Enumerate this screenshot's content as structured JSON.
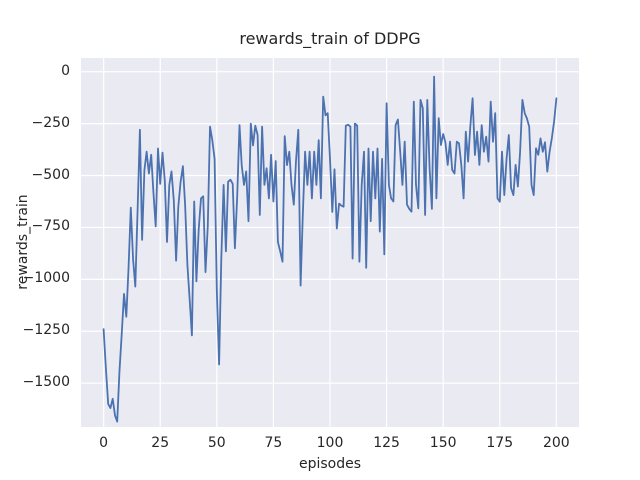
{
  "chart_data": {
    "type": "line",
    "title": "rewards_train of DDPG",
    "xlabel": "episodes",
    "ylabel": "rewards_train",
    "x_ticks": [
      0,
      25,
      50,
      75,
      100,
      125,
      150,
      175,
      200
    ],
    "x_tick_labels": [
      "0",
      "25",
      "50",
      "75",
      "100",
      "125",
      "150",
      "175",
      "200"
    ],
    "y_ticks": [
      0,
      -250,
      -500,
      -750,
      -1000,
      -1250,
      -1500
    ],
    "y_tick_labels": [
      "0",
      "−250",
      "−500",
      "−750",
      "−1000",
      "−1250",
      "−1500"
    ],
    "xlim": [
      -10,
      210
    ],
    "ylim": [
      -1711,
      66
    ],
    "grid": true,
    "legend": "none",
    "background_color": "#EAEAF2",
    "gridline_color": "#FFFFFF",
    "text_color": "#262626",
    "series": [
      {
        "name": "rewards_train",
        "color": "#4C72B0",
        "x_start": 0,
        "x_step": 1,
        "values": [
          -1240,
          -1430,
          -1600,
          -1620,
          -1575,
          -1655,
          -1685,
          -1440,
          -1265,
          -1070,
          -1180,
          -950,
          -655,
          -905,
          -1035,
          -665,
          -280,
          -810,
          -475,
          -385,
          -490,
          -400,
          -580,
          -745,
          -370,
          -540,
          -390,
          -525,
          -820,
          -545,
          -480,
          -620,
          -910,
          -650,
          -530,
          -455,
          -640,
          -930,
          -1100,
          -1270,
          -625,
          -1010,
          -760,
          -610,
          -600,
          -965,
          -740,
          -265,
          -330,
          -420,
          -1050,
          -1410,
          -900,
          -545,
          -865,
          -530,
          -520,
          -540,
          -850,
          -600,
          -257,
          -450,
          -545,
          -480,
          -720,
          -250,
          -355,
          -260,
          -305,
          -690,
          -265,
          -545,
          -465,
          -610,
          -400,
          -625,
          -430,
          -820,
          -865,
          -915,
          -310,
          -450,
          -385,
          -545,
          -640,
          -430,
          -280,
          -1030,
          -690,
          -385,
          -545,
          -385,
          -610,
          -385,
          -545,
          -330,
          -610,
          -120,
          -210,
          -200,
          -420,
          -675,
          -470,
          -755,
          -635,
          -645,
          -650,
          -260,
          -255,
          -265,
          -900,
          -250,
          -260,
          -915,
          -545,
          -385,
          -945,
          -370,
          -720,
          -385,
          -610,
          -370,
          -770,
          -420,
          -880,
          -152,
          -545,
          -610,
          -625,
          -257,
          -230,
          -385,
          -545,
          -337,
          -640,
          -660,
          -674,
          -144,
          -545,
          -658,
          -136,
          -176,
          -690,
          -136,
          -465,
          -660,
          -24,
          -610,
          -224,
          -353,
          -300,
          -340,
          -449,
          -337,
          -473,
          -490,
          -337,
          -345,
          -449,
          -610,
          -289,
          -433,
          -265,
          -128,
          -401,
          -289,
          -449,
          -257,
          -385,
          -313,
          -433,
          -144,
          -337,
          -200,
          -610,
          -626,
          -385,
          -594,
          -417,
          -305,
          -561,
          -594,
          -449,
          -553,
          -385,
          -136,
          -200,
          -225,
          -265,
          -545,
          -594,
          -369,
          -400,
          -321,
          -385,
          -340,
          -481,
          -385,
          -321,
          -240,
          -128
        ]
      }
    ]
  }
}
